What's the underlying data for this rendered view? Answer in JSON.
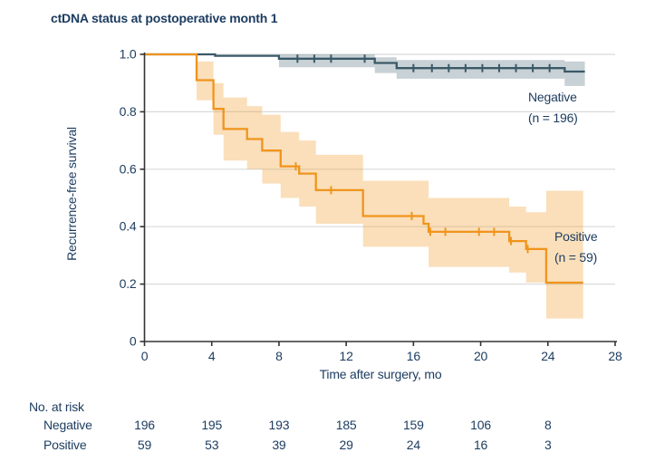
{
  "chart_data": {
    "type": "line",
    "subtype": "kaplan-meier-step",
    "title": "ctDNA status at postoperative month 1",
    "xlabel": "Time after surgery, mo",
    "ylabel": "Recurrence-free survival",
    "xlim": [
      0,
      28
    ],
    "ylim": [
      0,
      1.0
    ],
    "xticks": [
      0,
      4,
      8,
      12,
      16,
      20,
      24,
      28
    ],
    "yticks": [
      0,
      0.2,
      0.4,
      0.6,
      0.8,
      1.0
    ],
    "ytick_labels": [
      "0",
      "0.2",
      "0.4",
      "0.6",
      "0.8",
      "1.0"
    ],
    "grid": "horizontal gridlines at 0.2 intervals",
    "legend_position": "labels inline at right of each curve",
    "colors": {
      "text": "#1b3b5f",
      "grid": "#d9dadb",
      "axis": "#333333"
    },
    "series": [
      {
        "name": "Negative",
        "label_name": "Negative",
        "label_n": "(n = 196)",
        "color": "#3a5968",
        "band_color": "rgba(58,89,104,0.28)",
        "steps": [
          [
            0,
            1.0
          ],
          [
            4.2,
            0.995
          ],
          [
            8.0,
            0.985
          ],
          [
            13.7,
            0.97
          ],
          [
            15.0,
            0.952
          ],
          [
            25.0,
            0.94
          ]
        ],
        "end_x": 26.2,
        "censor_x": [
          9.1,
          10.1,
          11.1,
          13.1,
          16.0,
          17.1,
          18.1,
          19.1,
          20.1,
          21.1,
          22.1,
          23.1,
          24.1
        ],
        "band": [
          [
            8.0,
            0.955,
            1.0
          ],
          [
            13.7,
            0.935,
            0.99
          ],
          [
            15.0,
            0.915,
            0.98
          ],
          [
            25.0,
            0.89,
            0.975
          ]
        ],
        "band_end_x": 26.2
      },
      {
        "name": "Positive",
        "label_name": "Positive",
        "label_n": "(n = 59)",
        "color": "#f0941c",
        "band_color": "rgba(240,148,28,0.30)",
        "steps": [
          [
            0,
            1.0
          ],
          [
            3.1,
            0.91
          ],
          [
            4.1,
            0.81
          ],
          [
            4.7,
            0.74
          ],
          [
            6.1,
            0.705
          ],
          [
            7.0,
            0.665
          ],
          [
            8.1,
            0.61
          ],
          [
            9.2,
            0.585
          ],
          [
            10.2,
            0.527
          ],
          [
            13.0,
            0.437
          ],
          [
            16.6,
            0.41
          ],
          [
            16.9,
            0.382
          ],
          [
            21.7,
            0.35
          ],
          [
            22.7,
            0.322
          ],
          [
            23.9,
            0.205
          ]
        ],
        "end_x": 26.1,
        "censor_x": [
          9.0,
          11.1,
          15.9,
          17.0,
          17.9,
          19.9,
          20.8,
          21.8,
          22.8
        ],
        "band": [
          [
            3.1,
            0.84,
            0.975
          ],
          [
            4.1,
            0.72,
            0.9
          ],
          [
            4.7,
            0.63,
            0.85
          ],
          [
            6.1,
            0.6,
            0.82
          ],
          [
            7.0,
            0.55,
            0.79
          ],
          [
            8.1,
            0.5,
            0.73
          ],
          [
            9.2,
            0.47,
            0.7
          ],
          [
            10.2,
            0.41,
            0.65
          ],
          [
            13.0,
            0.33,
            0.56
          ],
          [
            16.9,
            0.26,
            0.5
          ],
          [
            21.7,
            0.24,
            0.47
          ],
          [
            22.7,
            0.205,
            0.45
          ],
          [
            23.9,
            0.08,
            0.525
          ]
        ],
        "band_end_x": 26.1
      }
    ],
    "at_risk": {
      "title": "No. at risk",
      "times": [
        0,
        4,
        8,
        12,
        16,
        20,
        24
      ],
      "rows": [
        {
          "label": "Negative",
          "values": [
            196,
            195,
            193,
            185,
            159,
            106,
            8
          ]
        },
        {
          "label": "Positive",
          "values": [
            59,
            53,
            39,
            29,
            24,
            16,
            3
          ]
        }
      ]
    }
  }
}
